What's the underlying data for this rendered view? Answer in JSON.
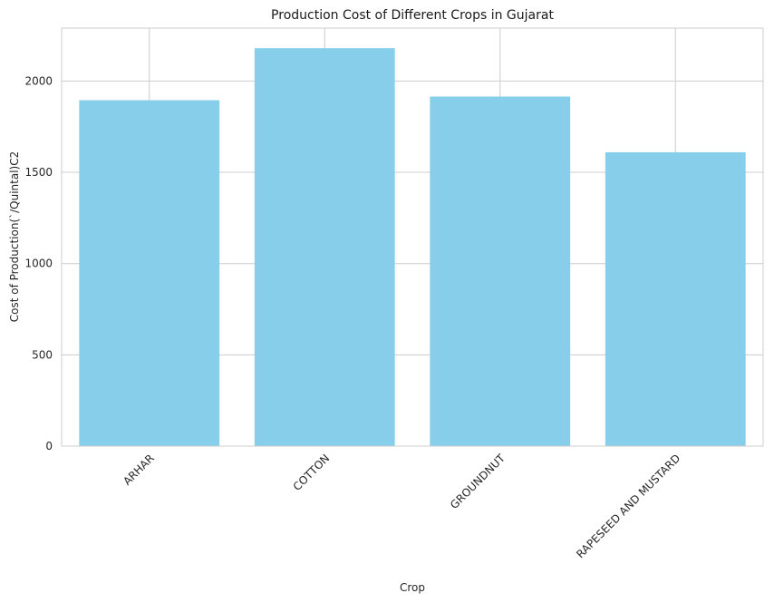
{
  "chart_data": {
    "type": "bar",
    "title": "Production Cost of Different Crops in Gujarat",
    "xlabel": "Crop",
    "ylabel": "Cost of Production(`/Quintal)C2",
    "categories": [
      "ARHAR",
      "COTTON",
      "GROUNDNUT",
      "RAPESEED AND MUSTARD"
    ],
    "values": [
      1895,
      2180,
      1915,
      1610
    ],
    "ylim": [
      0,
      2290
    ],
    "yticks": [
      0,
      500,
      1000,
      1500,
      2000
    ],
    "bar_color": "#87CEEB",
    "grid": true,
    "legend": "none"
  }
}
